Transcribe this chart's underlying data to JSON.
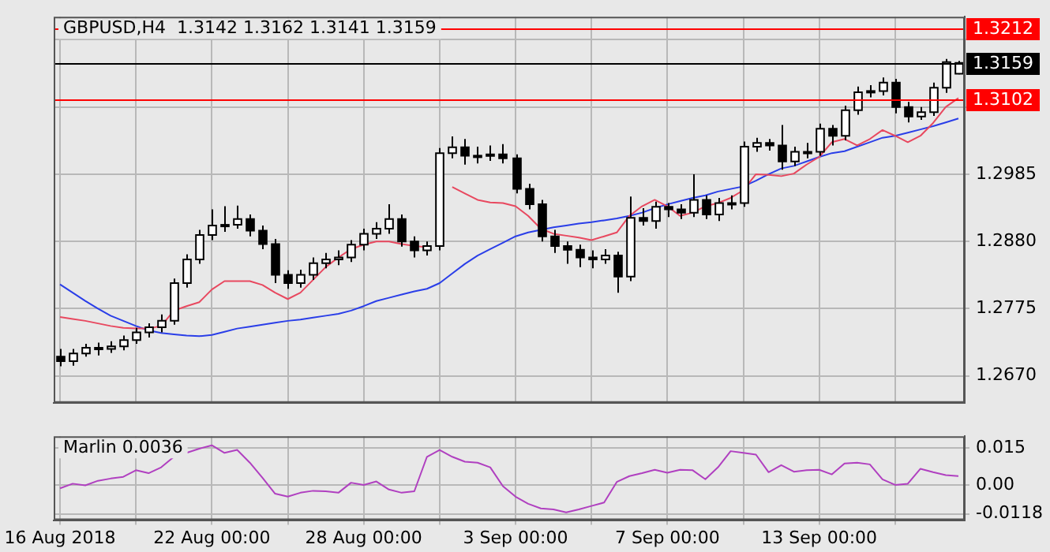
{
  "chart_data": [
    {
      "type": "candlestick",
      "title": "GBPUSD,H4  1.3142 1.3162 1.3141 1.3159",
      "categories": [
        null,
        null,
        null,
        null,
        null,
        null,
        null,
        null,
        null,
        null,
        null,
        null,
        null,
        null,
        null,
        null,
        null,
        null,
        null,
        null,
        null,
        null,
        null,
        null,
        null,
        null,
        null,
        null,
        null,
        null,
        null,
        null,
        null,
        null,
        null,
        null,
        null,
        null,
        null,
        null,
        null,
        null,
        null,
        null,
        null,
        null,
        null,
        null,
        null,
        null,
        null,
        null,
        null,
        null,
        null,
        null,
        null,
        null,
        null,
        null,
        null,
        null,
        null,
        null,
        null,
        null,
        null,
        null,
        null,
        null,
        null,
        null
      ],
      "colors": [
        "#000000",
        "#ffffff",
        "#ffffff",
        "#000000",
        "#ffffff",
        "#ffffff",
        "#ffffff",
        "#ffffff",
        "#ffffff",
        "#ffffff",
        "#ffffff",
        "#ffffff",
        "#ffffff",
        "#ffffff",
        "#ffffff",
        "#000000",
        "#000000",
        "#000000",
        "#000000",
        "#ffffff",
        "#ffffff",
        "#ffffff",
        "#ffffff",
        "#ffffff",
        "#ffffff",
        "#ffffff",
        "#ffffff",
        "#000000",
        "#000000",
        "#ffffff",
        "#ffffff",
        "#ffffff",
        "#000000",
        "#ffffff",
        "#ffffff",
        "#000000",
        "#000000",
        "#000000",
        "#000000",
        "#000000",
        "#000000",
        "#000000",
        "#000000",
        "#ffffff",
        "#000000",
        "#ffffff",
        "#000000",
        "#ffffff",
        "#000000",
        "#000000",
        "#ffffff",
        "#000000",
        "#ffffff",
        "#ffffff",
        "#ffffff",
        "#ffffff",
        "#000000",
        "#000000",
        "#ffffff",
        "#ffffff",
        "#ffffff",
        "#000000",
        "#ffffff",
        "#ffffff",
        "#ffffff",
        "#ffffff",
        "#000000",
        "#000000",
        "#ffffff",
        "#ffffff",
        "#ffffff",
        "#ffffff"
      ],
      "ohlc": [
        [
          1.27,
          1.2712,
          1.2685,
          1.2693
        ],
        [
          1.2693,
          1.2712,
          1.2686,
          1.2705
        ],
        [
          1.2705,
          1.272,
          1.27,
          1.2714
        ],
        [
          1.2714,
          1.2722,
          1.2702,
          1.2712
        ],
        [
          1.2712,
          1.2724,
          1.2706,
          1.2716
        ],
        [
          1.2716,
          1.2733,
          1.271,
          1.2726
        ],
        [
          1.2726,
          1.2745,
          1.272,
          1.2738
        ],
        [
          1.2738,
          1.2752,
          1.273,
          1.2746
        ],
        [
          1.2746,
          1.2766,
          1.2738,
          1.2756
        ],
        [
          1.2756,
          1.2822,
          1.275,
          1.2815
        ],
        [
          1.2815,
          1.286,
          1.2808,
          1.2852
        ],
        [
          1.2852,
          1.2898,
          1.2845,
          1.289
        ],
        [
          1.289,
          1.293,
          1.2882,
          1.2905
        ],
        [
          1.2905,
          1.2935,
          1.2895,
          1.2906
        ],
        [
          1.2906,
          1.2936,
          1.29,
          1.2915
        ],
        [
          1.2915,
          1.2922,
          1.2888,
          1.2897
        ],
        [
          1.2897,
          1.2905,
          1.2868,
          1.2876
        ],
        [
          1.2876,
          1.2884,
          1.2815,
          1.2828
        ],
        [
          1.2828,
          1.2835,
          1.2806,
          1.2815
        ],
        [
          1.2815,
          1.2836,
          1.2808,
          1.2828
        ],
        [
          1.2828,
          1.2855,
          1.282,
          1.2846
        ],
        [
          1.2846,
          1.2862,
          1.2838,
          1.2852
        ],
        [
          1.2852,
          1.2866,
          1.2843,
          1.2855
        ],
        [
          1.2855,
          1.2882,
          1.2848,
          1.2875
        ],
        [
          1.2875,
          1.29,
          1.2866,
          1.2892
        ],
        [
          1.2892,
          1.291,
          1.2884,
          1.29
        ],
        [
          1.29,
          1.2938,
          1.2892,
          1.2915
        ],
        [
          1.2915,
          1.2922,
          1.2872,
          1.288
        ],
        [
          1.288,
          1.2888,
          1.2855,
          1.2866
        ],
        [
          1.2866,
          1.288,
          1.2858,
          1.2873
        ],
        [
          1.2873,
          1.3026,
          1.2866,
          1.3018
        ],
        [
          1.3018,
          1.3044,
          1.301,
          1.3027
        ],
        [
          1.3027,
          1.304,
          1.3,
          1.3014
        ],
        [
          1.3014,
          1.3028,
          1.3002,
          1.3014
        ],
        [
          1.3014,
          1.303,
          1.3006,
          1.3016
        ],
        [
          1.3016,
          1.3032,
          1.3002,
          1.301
        ],
        [
          1.301,
          1.3016,
          1.2955,
          1.2962
        ],
        [
          1.2962,
          1.297,
          1.293,
          1.2938
        ],
        [
          1.2938,
          1.2945,
          1.288,
          1.2888
        ],
        [
          1.2888,
          1.2898,
          1.2862,
          1.2873
        ],
        [
          1.2873,
          1.288,
          1.2845,
          1.2867
        ],
        [
          1.2867,
          1.2875,
          1.284,
          1.2855
        ],
        [
          1.2855,
          1.2866,
          1.2838,
          1.2852
        ],
        [
          1.2852,
          1.2868,
          1.2845,
          1.2858
        ],
        [
          1.2858,
          1.2864,
          1.28,
          1.2825
        ],
        [
          1.2825,
          1.295,
          1.2818,
          1.2917
        ],
        [
          1.2917,
          1.2932,
          1.2905,
          1.2912
        ],
        [
          1.2912,
          1.2942,
          1.29,
          1.2934
        ],
        [
          1.2934,
          1.294,
          1.2918,
          1.293
        ],
        [
          1.293,
          1.2938,
          1.2915,
          1.2925
        ],
        [
          1.2925,
          1.2985,
          1.2918,
          1.2945
        ],
        [
          1.2945,
          1.2952,
          1.2915,
          1.2922
        ],
        [
          1.2922,
          1.2948,
          1.2912,
          1.294
        ],
        [
          1.294,
          1.2952,
          1.293,
          1.294
        ],
        [
          1.294,
          1.3036,
          1.2934,
          1.3028
        ],
        [
          1.3028,
          1.3042,
          1.302,
          1.3034
        ],
        [
          1.3034,
          1.304,
          1.3022,
          1.303
        ],
        [
          1.303,
          1.3062,
          1.2992,
          1.3005
        ],
        [
          1.3005,
          1.3028,
          1.2998,
          1.302
        ],
        [
          1.302,
          1.3034,
          1.301,
          1.302
        ],
        [
          1.302,
          1.3064,
          1.3014,
          1.3056
        ],
        [
          1.3056,
          1.3062,
          1.303,
          1.3045
        ],
        [
          1.3045,
          1.3092,
          1.3038,
          1.3085
        ],
        [
          1.3085,
          1.3122,
          1.3078,
          1.3113
        ],
        [
          1.3113,
          1.3124,
          1.3105,
          1.3115
        ],
        [
          1.3115,
          1.3136,
          1.3108,
          1.3128
        ],
        [
          1.3128,
          1.3134,
          1.308,
          1.309
        ],
        [
          1.309,
          1.3098,
          1.3066,
          1.3075
        ],
        [
          1.3075,
          1.309,
          1.307,
          1.3082
        ],
        [
          1.3082,
          1.3128,
          1.3076,
          1.312
        ],
        [
          1.312,
          1.3165,
          1.3112,
          1.316
        ],
        [
          1.3142,
          1.3162,
          1.3141,
          1.3159
        ]
      ],
      "series": [
        {
          "type": "line",
          "color": "#e8485f",
          "values": [
            1.2762,
            1.2759,
            1.2756,
            1.2752,
            1.2748,
            1.2745,
            1.2744,
            1.2744,
            1.2748,
            1.2772,
            1.2779,
            1.2785,
            1.2805,
            1.2818,
            1.2818,
            1.2818,
            1.2812,
            1.28,
            1.279,
            1.28,
            1.282,
            1.284,
            1.2855,
            1.2868,
            1.2875,
            1.288,
            1.288,
            1.2876,
            1.2873,
            1.2871,
            null,
            1.2965,
            1.2955,
            1.2945,
            1.2941,
            1.294,
            1.2935,
            1.292,
            1.29,
            1.2892,
            1.2889,
            1.2886,
            1.2882,
            1.2888,
            1.2894,
            1.292,
            1.2935,
            1.2945,
            1.2935,
            1.292,
            1.2925,
            1.2935,
            1.294,
            1.2948,
            1.296,
            1.2985,
            1.2984,
            1.2982,
            1.2986,
            1.3,
            1.3012,
            1.3035,
            1.304,
            1.303,
            1.304,
            1.3054,
            1.3045,
            1.3035,
            1.3045,
            1.3065,
            1.309,
            1.3104
          ]
        },
        {
          "type": "line",
          "color": "#2a3ee8",
          "values": [
            1.2813,
            1.28,
            1.2787,
            1.2775,
            1.2764,
            1.2756,
            1.2748,
            1.2741,
            1.2737,
            1.2735,
            1.2733,
            1.2732,
            1.2734,
            1.2739,
            1.2744,
            1.2747,
            1.275,
            1.2753,
            1.2756,
            1.2758,
            1.2761,
            1.2764,
            1.2767,
            1.2772,
            1.2779,
            1.2787,
            1.2792,
            1.2797,
            1.2802,
            1.2806,
            1.2815,
            1.283,
            1.2845,
            1.2858,
            1.2868,
            1.2878,
            1.2888,
            1.2894,
            1.2898,
            1.2902,
            1.2905,
            1.2908,
            1.291,
            1.2913,
            1.2916,
            1.292,
            1.2925,
            1.2932,
            1.2938,
            1.2943,
            1.2948,
            1.2952,
            1.2958,
            1.2962,
            1.2966,
            1.2975,
            1.2985,
            1.2994,
            1.2998,
            1.3005,
            1.3012,
            1.3018,
            1.3021,
            1.3028,
            1.3035,
            1.3042,
            1.3045,
            1.305,
            1.3055,
            1.306,
            1.3066,
            1.3072
          ]
        }
      ],
      "ylim": [
        1.2628,
        1.3231
      ],
      "yticks": [
        {
          "value": 1.267,
          "label": "1.2670"
        },
        {
          "value": 1.2775,
          "label": "1.2775"
        },
        {
          "value": 1.288,
          "label": "1.2880"
        },
        {
          "value": 1.2985,
          "label": "1.2985"
        },
        {
          "value": 1.309,
          "label": null
        },
        {
          "value": 1.3195,
          "label": null
        }
      ],
      "ref_lines": [
        {
          "axis": "y",
          "value": 1.3212,
          "label": "1.3212",
          "color": "#ff0000"
        },
        {
          "axis": "y",
          "value": 1.3159,
          "label": "1.3159",
          "color": "#000000"
        },
        {
          "axis": "y",
          "value": 1.3102,
          "label": "1.3102",
          "color": "#ff0000"
        }
      ],
      "grid": true,
      "tick_labels": "y"
    },
    {
      "type": "line",
      "title": "Marlin 0.0036",
      "categories": [
        "16 Aug 2018",
        null,
        null,
        null,
        null,
        null,
        null,
        null,
        null,
        null,
        null,
        null,
        "22 Aug 00:00",
        null,
        null,
        null,
        null,
        null,
        null,
        null,
        null,
        null,
        null,
        null,
        "28 Aug 00:00",
        null,
        null,
        null,
        null,
        null,
        null,
        null,
        null,
        null,
        null,
        null,
        "3 Sep 00:00",
        null,
        null,
        null,
        null,
        null,
        null,
        null,
        null,
        null,
        null,
        null,
        "7 Sep 00:00",
        null,
        null,
        null,
        null,
        null,
        null,
        null,
        null,
        null,
        null,
        null,
        "13 Sep 00:00",
        null,
        null,
        null,
        null,
        null,
        null,
        null,
        null,
        null,
        null,
        null
      ],
      "color": "#b040c0",
      "values": [
        -0.0014,
        0.0005,
        -0.0002,
        0.0017,
        0.0026,
        0.0033,
        0.006,
        0.0048,
        0.0072,
        0.0115,
        0.0131,
        0.0148,
        0.0162,
        0.0131,
        0.0143,
        0.0091,
        0.0029,
        -0.0036,
        -0.0048,
        -0.0032,
        -0.0024,
        -0.0026,
        -0.0032,
        0.0009,
        0.0,
        0.0014,
        -0.0019,
        -0.0032,
        -0.0026,
        0.0115,
        0.0143,
        0.0115,
        0.0095,
        0.0091,
        0.0072,
        -0.0005,
        -0.0048,
        -0.0077,
        -0.0096,
        -0.01,
        -0.0112,
        -0.01,
        -0.0086,
        -0.0072,
        0.0012,
        0.0036,
        0.0048,
        0.0062,
        0.005,
        0.0062,
        0.006,
        0.0023,
        0.0072,
        0.0138,
        0.0131,
        0.0124,
        0.0052,
        0.0081,
        0.0054,
        0.006,
        0.0062,
        0.0043,
        0.0088,
        0.0091,
        0.0084,
        0.0023,
        0.0,
        0.0005,
        0.0066,
        0.0052,
        0.004,
        0.0036
      ],
      "ylim": [
        -0.0144,
        0.0199
      ],
      "yticks": [
        {
          "value": -0.0118,
          "label": "-0.0118"
        },
        {
          "value": 0,
          "label": "0.00"
        },
        {
          "value": 0.015,
          "label": "0.015"
        }
      ],
      "grid": true
    }
  ]
}
